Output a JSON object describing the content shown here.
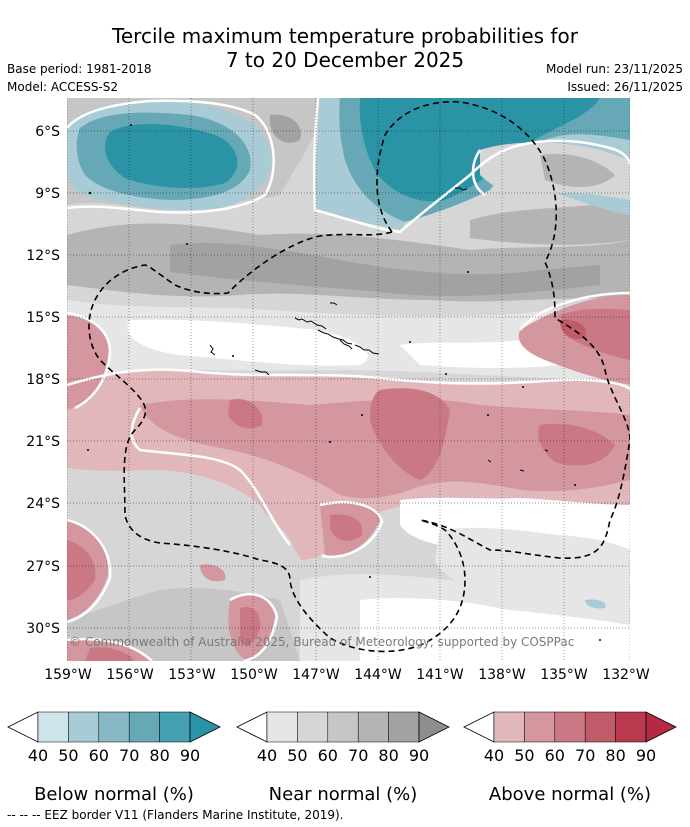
{
  "title": {
    "line1": "Tercile maximum temperature probabilities for",
    "line2": "7 to 20 December 2025"
  },
  "meta": {
    "base_period": "Base period: 1981-2018",
    "model": "Model: ACCESS-S2",
    "model_run": "Model run: 23/11/2025",
    "issued": "Issued: 26/11/2025"
  },
  "map": {
    "lat_labels": [
      "6°S",
      "9°S",
      "12°S",
      "15°S",
      "18°S",
      "21°S",
      "24°S",
      "27°S",
      "30°S"
    ],
    "lon_labels": [
      "159°W",
      "156°W",
      "153°W",
      "150°W",
      "147°W",
      "144°W",
      "141°W",
      "138°W",
      "135°W",
      "132°W"
    ],
    "copyright": "© Commonwealth of Australia 2025, Bureau of Meteorology, supported by COSPPac"
  },
  "colorbars": [
    {
      "name": "below",
      "label": "Below normal (%)",
      "ticks": [
        "40",
        "50",
        "60",
        "70",
        "80",
        "90"
      ],
      "colors": [
        "#ffffff",
        "#cfe3ea",
        "#a9cbd6",
        "#88b8c5",
        "#66a8b6",
        "#42a0b0",
        "#2a94a6"
      ]
    },
    {
      "name": "near",
      "label": "Near normal (%)",
      "ticks": [
        "40",
        "50",
        "60",
        "70",
        "80",
        "90"
      ],
      "colors": [
        "#ffffff",
        "#e6e6e6",
        "#d6d6d6",
        "#c6c6c6",
        "#b4b4b4",
        "#a2a2a2",
        "#8e8e8e"
      ]
    },
    {
      "name": "above",
      "label": "Above normal (%)",
      "ticks": [
        "40",
        "50",
        "60",
        "70",
        "80",
        "90"
      ],
      "colors": [
        "#ffffff",
        "#e1b7bc",
        "#d4979f",
        "#c97884",
        "#c05b69",
        "#b93a4e",
        "#b52a43"
      ]
    }
  ],
  "footer": "--  --  -- EEZ border V11 (Flanders Marine Institute, 2019)."
}
